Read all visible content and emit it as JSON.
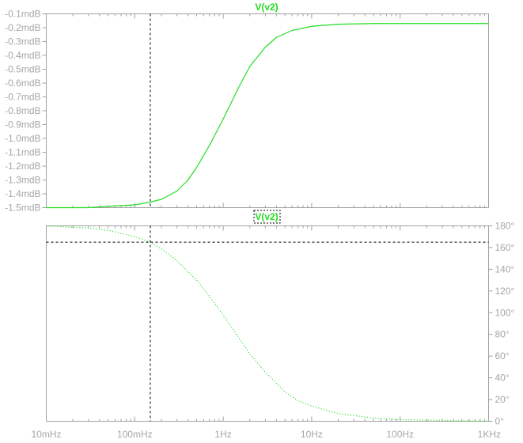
{
  "chart_data": {
    "type": "line",
    "x_axis": {
      "scale": "log",
      "unit": "Hz",
      "range": [
        0.01,
        1000
      ],
      "tick_values": [
        0.01,
        0.1,
        1,
        10,
        100,
        1000
      ],
      "tick_labels": [
        "10mHz",
        "100mHz",
        "1Hz",
        "10Hz",
        "100Hz",
        "1KHz"
      ]
    },
    "cursor": {
      "x": 0.15,
      "phase": 165
    },
    "colors": {
      "trace": "#22dd22",
      "axis": "#a0a0a0",
      "text": "#a6a6a6",
      "cursor": "#000000"
    },
    "panes": [
      {
        "title": "V(v2)",
        "quantity": "magnitude",
        "y_axis": {
          "unit": "dB",
          "range": [
            -1.5,
            -0.1
          ],
          "tick_values": [
            -0.1,
            -0.2,
            -0.3,
            -0.4,
            -0.5,
            -0.6,
            -0.7,
            -0.8,
            -0.9,
            -1.0,
            -1.1,
            -1.2,
            -1.3,
            -1.4,
            -1.5
          ],
          "tick_labels": [
            "-0.1mdB",
            "-0.2mdB",
            "-0.3mdB",
            "-0.4mdB",
            "-0.5mdB",
            "-0.6mdB",
            "-0.7mdB",
            "-0.8mdB",
            "-0.9mdB",
            "-1.0mdB",
            "-1.1mdB",
            "-1.2mdB",
            "-1.3mdB",
            "-1.4mdB",
            "-1.5mdB"
          ],
          "side": "left"
        },
        "series": [
          {
            "style": "solid",
            "points": [
              [
                0.01,
                -1.5
              ],
              [
                0.03,
                -1.5
              ],
              [
                0.05,
                -1.49
              ],
              [
                0.1,
                -1.48
              ],
              [
                0.15,
                -1.46
              ],
              [
                0.2,
                -1.44
              ],
              [
                0.3,
                -1.38
              ],
              [
                0.4,
                -1.3
              ],
              [
                0.5,
                -1.21
              ],
              [
                0.7,
                -1.05
              ],
              [
                1,
                -0.86
              ],
              [
                1.5,
                -0.63
              ],
              [
                2,
                -0.48
              ],
              [
                3,
                -0.34
              ],
              [
                4,
                -0.27
              ],
              [
                6,
                -0.22
              ],
              [
                10,
                -0.19
              ],
              [
                20,
                -0.175
              ],
              [
                50,
                -0.17
              ],
              [
                100,
                -0.17
              ],
              [
                1000,
                -0.17
              ]
            ]
          }
        ]
      },
      {
        "title": "V(v2)",
        "quantity": "phase",
        "y_axis": {
          "unit": "°",
          "range": [
            0,
            180
          ],
          "tick_values": [
            0,
            20,
            40,
            60,
            80,
            100,
            120,
            140,
            160,
            180
          ],
          "tick_labels": [
            "0°",
            "20°",
            "40°",
            "60°",
            "80°",
            "100°",
            "120°",
            "140°",
            "160°",
            "180°"
          ],
          "side": "right"
        },
        "series": [
          {
            "style": "dotted",
            "points": [
              [
                0.01,
                180
              ],
              [
                0.03,
                178
              ],
              [
                0.05,
                176
              ],
              [
                0.1,
                170
              ],
              [
                0.15,
                165
              ],
              [
                0.2,
                159
              ],
              [
                0.3,
                148
              ],
              [
                0.5,
                130
              ],
              [
                0.7,
                115
              ],
              [
                1,
                98
              ],
              [
                1.5,
                77
              ],
              [
                2,
                62
              ],
              [
                3,
                45
              ],
              [
                5,
                27
              ],
              [
                7,
                19
              ],
              [
                10,
                14
              ],
              [
                20,
                7
              ],
              [
                50,
                3
              ],
              [
                100,
                1.5
              ],
              [
                1000,
                0
              ]
            ]
          }
        ]
      }
    ]
  }
}
